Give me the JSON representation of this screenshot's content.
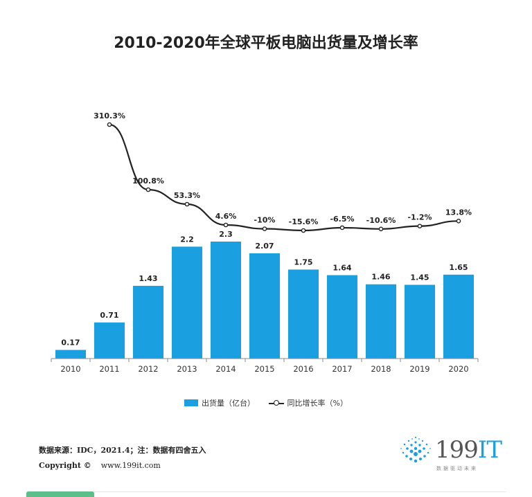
{
  "title": "2010-2020年全球平板电脑出货量及增长率",
  "chart_data": {
    "type": "bar",
    "title": "2010-2020年全球平板电脑出货量及增长率",
    "categories": [
      "2010",
      "2011",
      "2012",
      "2013",
      "2014",
      "2015",
      "2016",
      "2017",
      "2018",
      "2019",
      "2020"
    ],
    "series": [
      {
        "name": "出货量（亿台）",
        "type": "bar",
        "values": [
          0.17,
          0.71,
          1.43,
          2.2,
          2.3,
          2.07,
          1.75,
          1.64,
          1.46,
          1.45,
          1.65
        ],
        "labels": [
          "0.17",
          "0.71",
          "1.43",
          "2.2",
          "2.3",
          "2.07",
          "1.75",
          "1.64",
          "1.46",
          "1.45",
          "1.65"
        ],
        "color": "#1aa0e0"
      },
      {
        "name": "同比增长率（%）",
        "type": "line",
        "x": [
          "2011",
          "2012",
          "2013",
          "2014",
          "2015",
          "2016",
          "2017",
          "2018",
          "2019",
          "2020"
        ],
        "values": [
          310.3,
          100.8,
          53.3,
          4.6,
          -10,
          -15.6,
          -6.5,
          -10.6,
          -1.2,
          13.8
        ],
        "labels": [
          "310.3%",
          "100.8%",
          "53.3%",
          "4.6%",
          "-10%",
          "-15.6%",
          "-6.5%",
          "-10.6%",
          "-1.2%",
          "13.8%"
        ],
        "color": "#222222"
      }
    ],
    "xlabel": "",
    "ylabel": "",
    "ylim": [
      0,
      2.5
    ],
    "grid": false,
    "legend_position": "bottom"
  },
  "legend": {
    "bar_label": "出货量（亿台）",
    "line_label": "同比增长率（%）"
  },
  "footer": {
    "source": "数据来源：IDC，2021.4；注：数据有四舍五入",
    "copyright": "Copyright ©",
    "website": "www.199it.com"
  },
  "logo": {
    "brand_num": "199",
    "brand_it": "IT",
    "slogan": "数据驱动未来"
  }
}
